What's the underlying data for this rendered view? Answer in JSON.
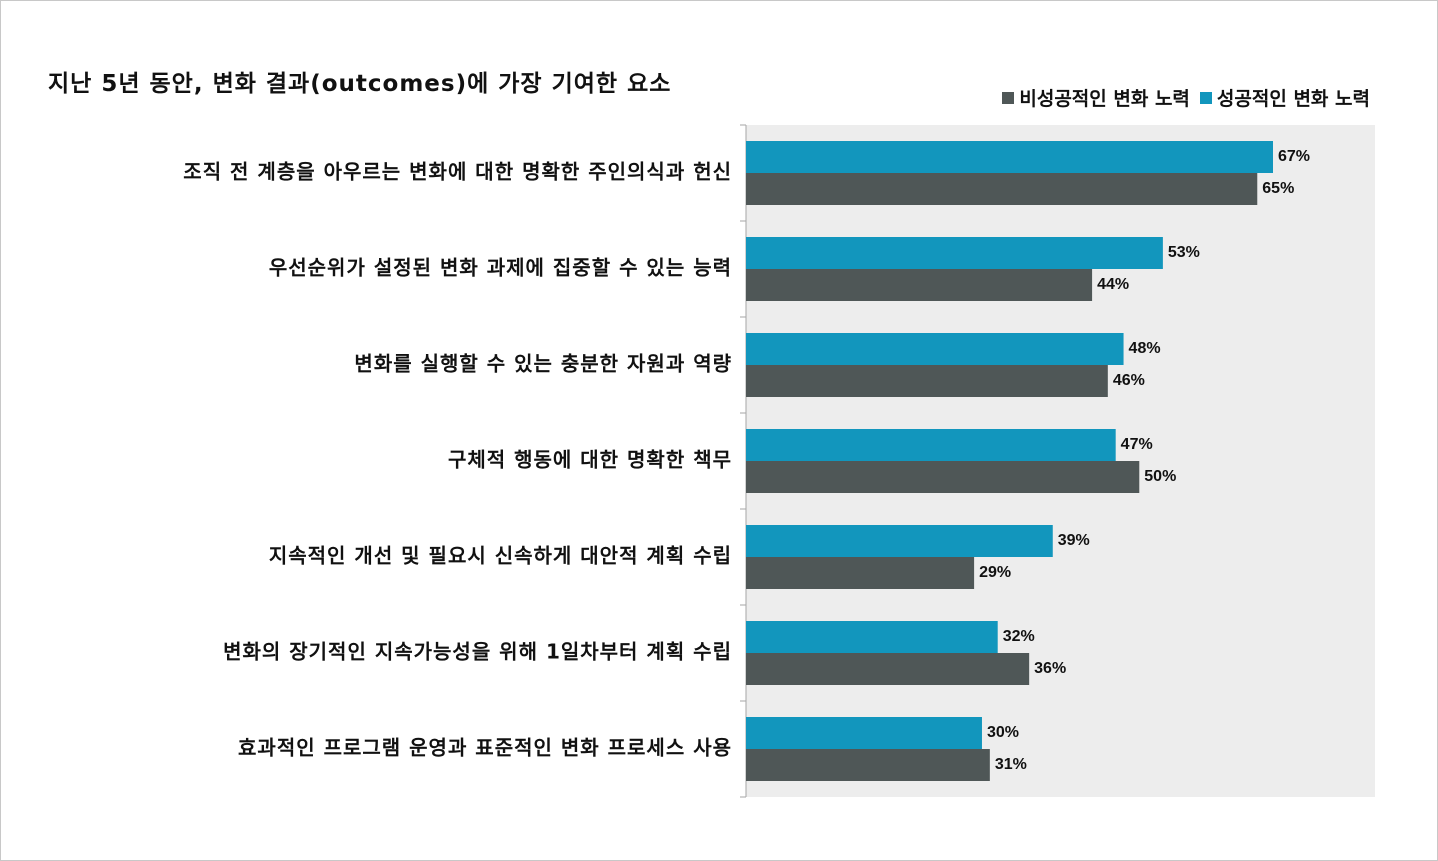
{
  "chart_data": {
    "type": "bar",
    "orientation": "horizontal",
    "title": "지난 5년 동안, 변화 결과(outcomes)에 가장 기여한 요소",
    "categories": [
      "조직 전 계층을 아우르는 변화에 대한 명확한 주인의식과 헌신",
      "우선순위가 설정된 변화 과제에 집중할 수 있는 능력",
      "변화를 실행할 수 있는 충분한 자원과 역량",
      "구체적 행동에 대한 명확한 책무",
      "지속적인 개선 및 필요시 신속하게 대안적 계획 수립",
      "변화의 장기적인 지속가능성을 위해 1일차부터 계획 수립",
      "효과적인 프로그램 운영과 표준적인 변화 프로세스 사용"
    ],
    "series": [
      {
        "name": "성공적인 변화 노력",
        "color": "#1296bd",
        "values": [
          67,
          53,
          48,
          47,
          39,
          32,
          30
        ],
        "labels": [
          "67%",
          "53%",
          "48%",
          "47%",
          "39%",
          "32%",
          "30%"
        ]
      },
      {
        "name": "비성공적인 변화 노력",
        "color": "#4f5757",
        "values": [
          65,
          44,
          46,
          50,
          29,
          36,
          31
        ],
        "labels": [
          "65%",
          "44%",
          "46%",
          "50%",
          "29%",
          "36%",
          "31%"
        ]
      }
    ],
    "legend": [
      {
        "name": "비성공적인 변화 노력",
        "color": "#4f5757"
      },
      {
        "name": "성공적인 변화 노력",
        "color": "#1296bd"
      }
    ],
    "legend_position": "top-right",
    "xlim": [
      0,
      80
    ],
    "value_unit": "%",
    "plot_background": "#ededed",
    "grid": false
  }
}
